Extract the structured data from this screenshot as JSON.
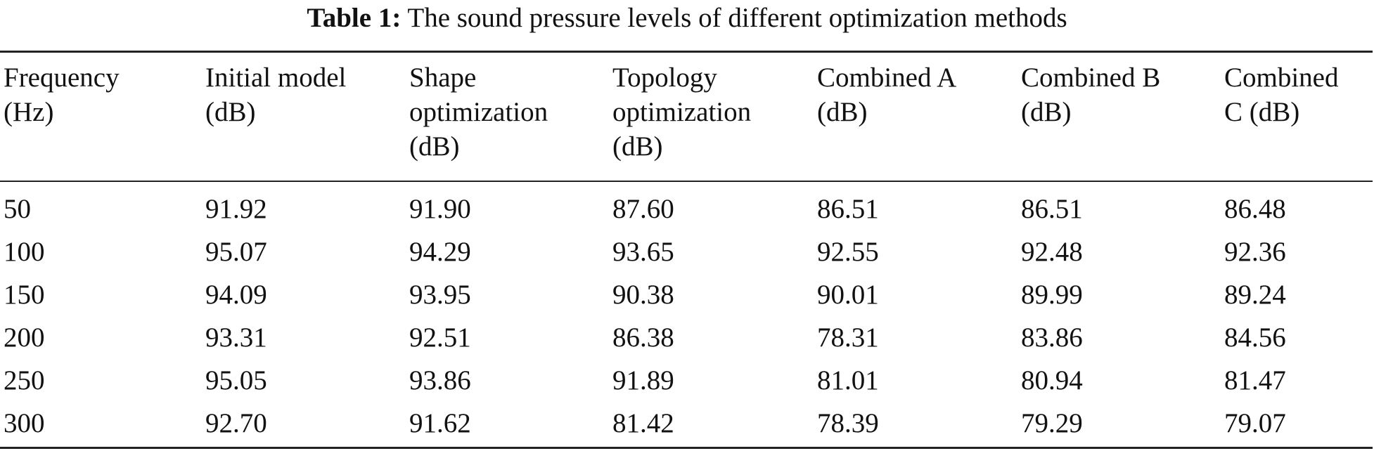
{
  "caption": {
    "label": "Table 1:",
    "text": "The sound pressure levels of different optimization methods"
  },
  "table": {
    "headers": [
      "Frequency\n(Hz)",
      "Initial model\n(dB)",
      "Shape\noptimization\n(dB)",
      "Topology\noptimization\n(dB)",
      "Combined A\n(dB)",
      "Combined B\n(dB)",
      "Combined\nC (dB)"
    ],
    "rows": [
      [
        "50",
        "91.92",
        "91.90",
        "87.60",
        "86.51",
        "86.51",
        "86.48"
      ],
      [
        "100",
        "95.07",
        "94.29",
        "93.65",
        "92.55",
        "92.48",
        "92.36"
      ],
      [
        "150",
        "94.09",
        "93.95",
        "90.38",
        "90.01",
        "89.99",
        "89.24"
      ],
      [
        "200",
        "93.31",
        "92.51",
        "86.38",
        "78.31",
        "83.86",
        "84.56"
      ],
      [
        "250",
        "95.05",
        "93.86",
        "91.89",
        "81.01",
        "80.94",
        "81.47"
      ],
      [
        "300",
        "92.70",
        "91.62",
        "81.42",
        "78.39",
        "79.29",
        "79.07"
      ]
    ]
  }
}
